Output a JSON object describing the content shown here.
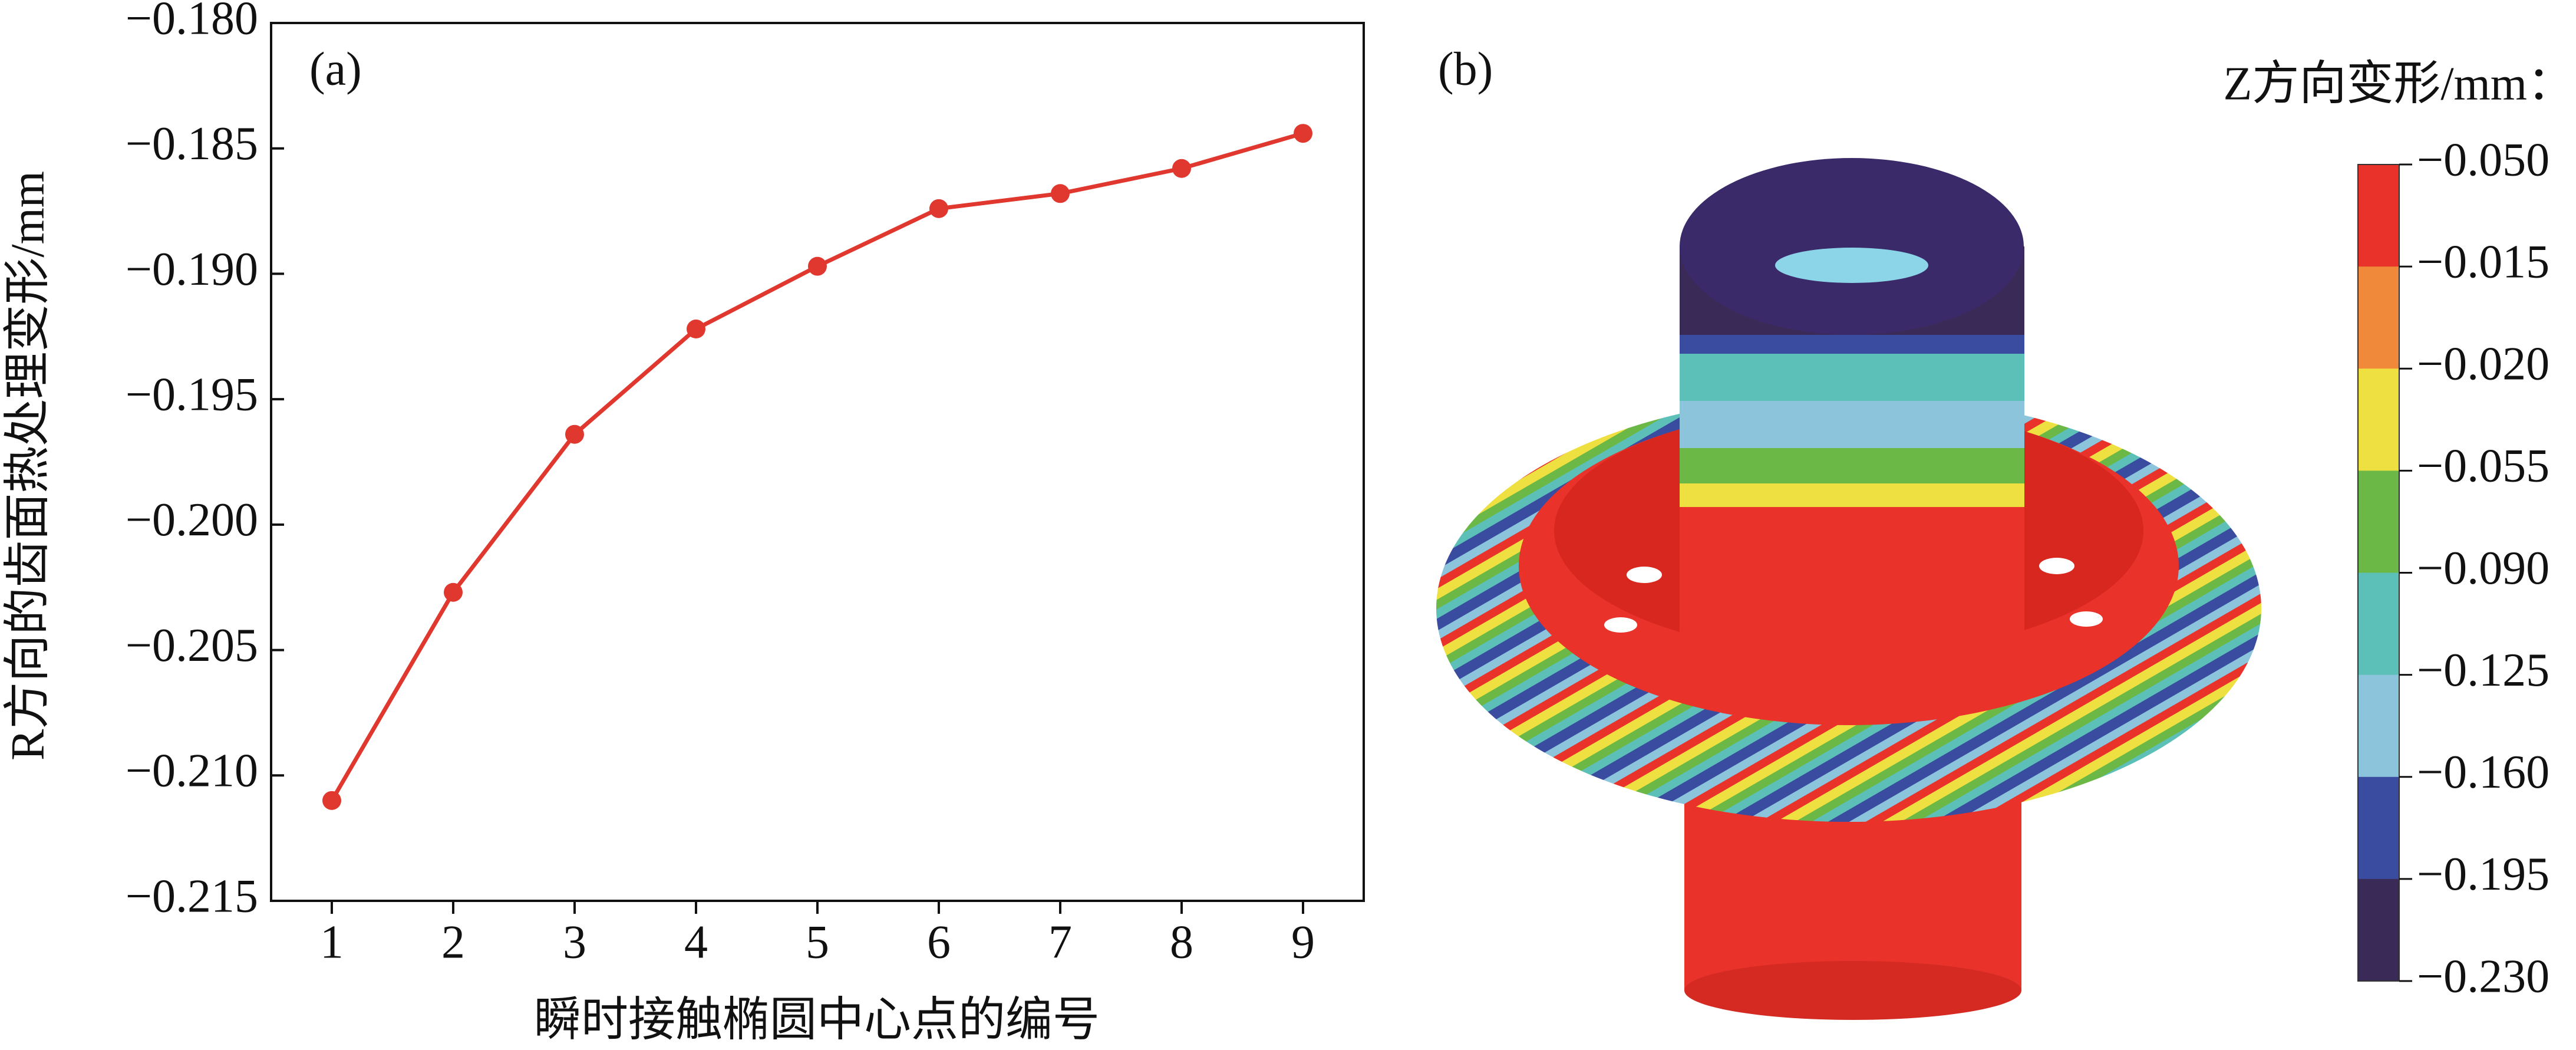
{
  "chart_data": [
    {
      "type": "line",
      "annotation": "(a)",
      "xlabel": "瞬时接触椭圆中心点的编号",
      "ylabel": "R方向的齿面热处理变形/mm",
      "x": [
        1,
        2,
        3,
        4,
        5,
        6,
        7,
        8,
        9
      ],
      "values": [
        -0.211,
        -0.2027,
        -0.1964,
        -0.1922,
        -0.1897,
        -0.1874,
        -0.1868,
        -0.1858,
        -0.1844
      ],
      "color": "#e0382e",
      "xlim": [
        0.5,
        9.5
      ],
      "xticks": [
        1,
        2,
        3,
        4,
        5,
        6,
        7,
        8,
        9
      ],
      "ylim": [
        -0.215,
        -0.18
      ],
      "yticks": [
        {
          "value": -0.215,
          "label": "−0.215"
        },
        {
          "value": -0.21,
          "label": "−0.210"
        },
        {
          "value": -0.205,
          "label": "−0.205"
        },
        {
          "value": -0.2,
          "label": "−0.200"
        },
        {
          "value": -0.195,
          "label": "−0.195"
        },
        {
          "value": -0.19,
          "label": "−0.190"
        },
        {
          "value": -0.185,
          "label": "−0.185"
        },
        {
          "value": -0.18,
          "label": "−0.180"
        }
      ]
    },
    {
      "type": "colorbar",
      "annotation": "(b)",
      "title": "Z方向变形/mm：",
      "labels": [
        "−0.050",
        "−0.015",
        "−0.020",
        "−0.055",
        "−0.090",
        "−0.125",
        "−0.160",
        "−0.195",
        "−0.230"
      ],
      "colors": [
        "#e8322a",
        "#f08a3a",
        "#eee040",
        "#6cb846",
        "#5cc0b8",
        "#8cc4dc",
        "#3a4ca0",
        "#3a2a58"
      ]
    }
  ]
}
